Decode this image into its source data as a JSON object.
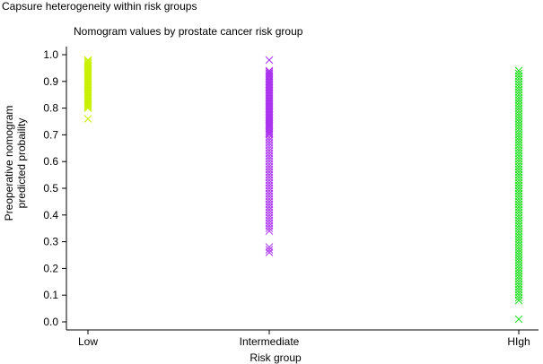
{
  "figure_title": "Capsure heterogeneity within risk groups",
  "chart_data": {
    "type": "scatter",
    "title": "Nomogram values by prostate cancer risk group",
    "xlabel": "Risk group",
    "ylabel_lines": [
      "Preoperative nomogram",
      "predicted probaility"
    ],
    "categories": [
      "Low",
      "Intermediate",
      "HIgh"
    ],
    "ylim": [
      0.0,
      1.0
    ],
    "yticks": [
      "0.0",
      "0.1",
      "0.2",
      "0.3",
      "0.4",
      "0.5",
      "0.6",
      "0.7",
      "0.8",
      "0.9",
      "1.0"
    ],
    "grid": false,
    "legend": "none",
    "marker": "x",
    "series": [
      {
        "category": "Low",
        "color": "#c8f000",
        "values": [
          0.98,
          0.975,
          0.97,
          0.965,
          0.96,
          0.955,
          0.95,
          0.945,
          0.94,
          0.935,
          0.93,
          0.925,
          0.92,
          0.915,
          0.91,
          0.905,
          0.9,
          0.895,
          0.89,
          0.885,
          0.88,
          0.875,
          0.87,
          0.865,
          0.86,
          0.855,
          0.85,
          0.845,
          0.84,
          0.835,
          0.83,
          0.825,
          0.82,
          0.815,
          0.81,
          0.805,
          0.8,
          0.76
        ]
      },
      {
        "category": "Intermediate",
        "color": "#aa33ee",
        "values": [
          0.98,
          0.94,
          0.935,
          0.93,
          0.925,
          0.92,
          0.915,
          0.91,
          0.905,
          0.9,
          0.895,
          0.89,
          0.885,
          0.88,
          0.875,
          0.87,
          0.865,
          0.86,
          0.855,
          0.85,
          0.845,
          0.84,
          0.835,
          0.83,
          0.825,
          0.82,
          0.815,
          0.81,
          0.805,
          0.8,
          0.795,
          0.79,
          0.785,
          0.78,
          0.775,
          0.77,
          0.765,
          0.76,
          0.755,
          0.75,
          0.745,
          0.74,
          0.735,
          0.73,
          0.725,
          0.72,
          0.715,
          0.71,
          0.705,
          0.7,
          0.69,
          0.68,
          0.67,
          0.66,
          0.65,
          0.64,
          0.63,
          0.62,
          0.61,
          0.6,
          0.59,
          0.58,
          0.57,
          0.56,
          0.55,
          0.54,
          0.53,
          0.52,
          0.51,
          0.5,
          0.49,
          0.48,
          0.47,
          0.46,
          0.45,
          0.44,
          0.43,
          0.42,
          0.41,
          0.4,
          0.39,
          0.38,
          0.37,
          0.36,
          0.35,
          0.34,
          0.28,
          0.27,
          0.26
        ]
      },
      {
        "category": "HIgh",
        "color": "#22dd22",
        "values": [
          0.94,
          0.93,
          0.92,
          0.91,
          0.9,
          0.89,
          0.88,
          0.87,
          0.86,
          0.85,
          0.84,
          0.83,
          0.82,
          0.81,
          0.8,
          0.79,
          0.78,
          0.77,
          0.76,
          0.75,
          0.74,
          0.73,
          0.72,
          0.71,
          0.7,
          0.69,
          0.68,
          0.67,
          0.66,
          0.65,
          0.64,
          0.63,
          0.62,
          0.61,
          0.6,
          0.59,
          0.58,
          0.57,
          0.56,
          0.55,
          0.54,
          0.53,
          0.52,
          0.51,
          0.5,
          0.49,
          0.48,
          0.47,
          0.46,
          0.45,
          0.44,
          0.43,
          0.42,
          0.41,
          0.4,
          0.39,
          0.38,
          0.37,
          0.36,
          0.35,
          0.34,
          0.33,
          0.32,
          0.31,
          0.3,
          0.29,
          0.28,
          0.27,
          0.26,
          0.25,
          0.24,
          0.23,
          0.22,
          0.21,
          0.2,
          0.19,
          0.18,
          0.17,
          0.16,
          0.15,
          0.14,
          0.13,
          0.12,
          0.11,
          0.1,
          0.09,
          0.08,
          0.01
        ]
      }
    ]
  }
}
